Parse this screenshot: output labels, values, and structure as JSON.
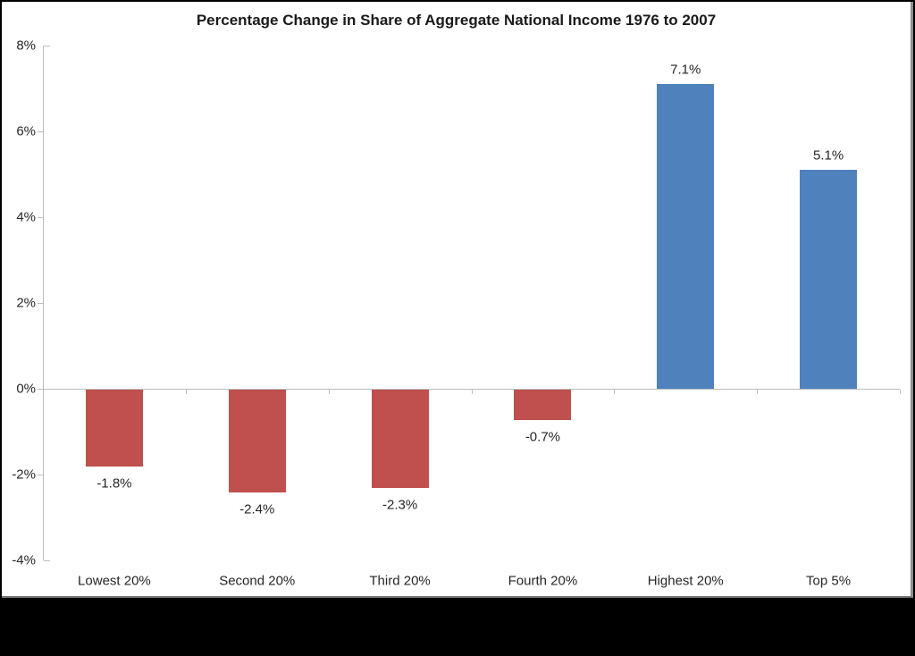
{
  "figure": {
    "background_color": "#000000",
    "canvas_color": "#ffffff",
    "edge_border_color": "#8f8f8f"
  },
  "chart_data": {
    "type": "bar",
    "title": "Percentage Change in Share of Aggregate National Income 1976 to 2007",
    "categories": [
      "Lowest 20%",
      "Second 20%",
      "Third 20%",
      "Fourth 20%",
      "Highest 20%",
      "Top 5%"
    ],
    "values": [
      -1.8,
      -2.4,
      -2.3,
      -0.7,
      7.1,
      5.1
    ],
    "data_labels": [
      "-1.8%",
      "-2.4%",
      "-2.3%",
      "-0.7%",
      "7.1%",
      "5.1%"
    ],
    "y_tick_labels": [
      "8%",
      "6%",
      "4%",
      "2%",
      "0%",
      "-2%",
      "-4%"
    ],
    "y_tick_values": [
      8,
      6,
      4,
      2,
      0,
      -2,
      -4
    ],
    "ylim": [
      -4,
      8
    ],
    "xlabel": "",
    "ylabel": "",
    "grid": false,
    "legend": "none",
    "colors": {
      "positive_bar": "#4F81BD",
      "negative_bar": "#C0504D",
      "axis_line": "#BDBDBD",
      "text": "#262626",
      "title_text": "#1A1A1A"
    }
  }
}
